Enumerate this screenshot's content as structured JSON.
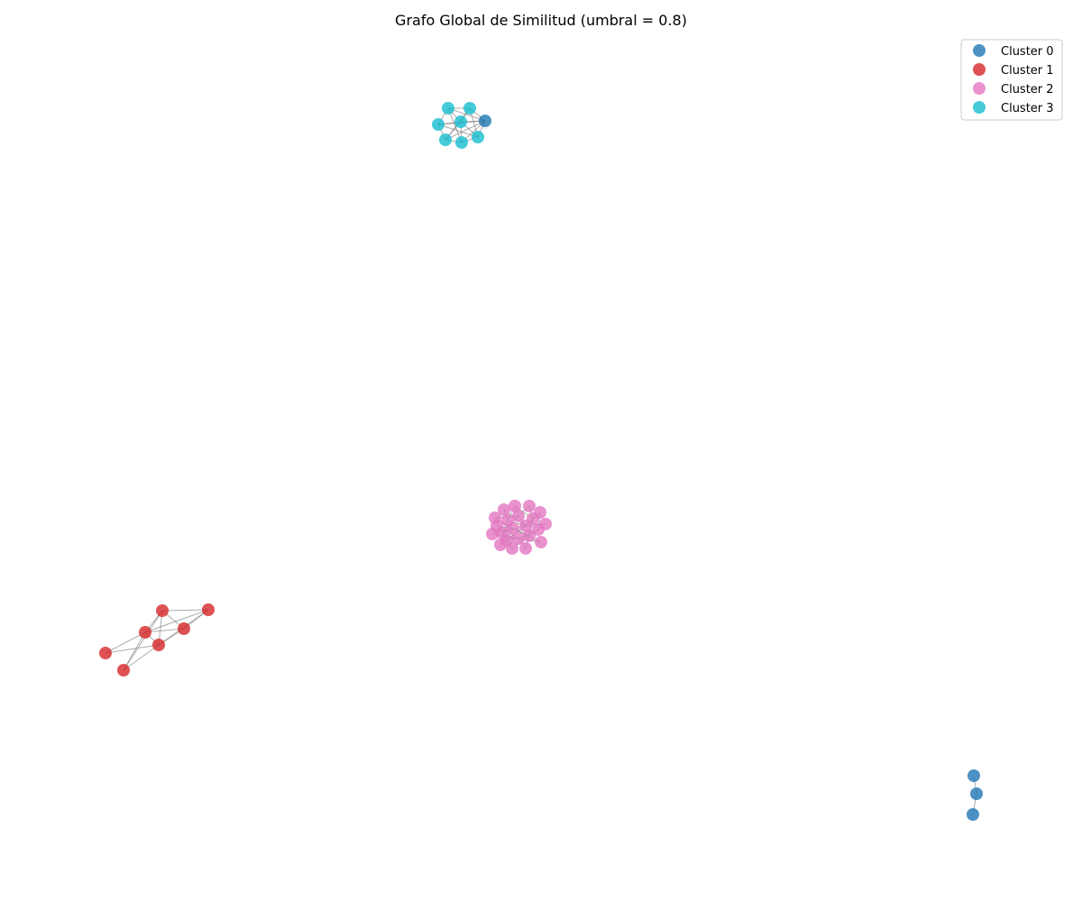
{
  "chart_data": {
    "type": "scatter",
    "title": "Grafo Global de Similitud (umbral = 0.8)",
    "xlabel": "",
    "ylabel": "",
    "axes_visible": false,
    "grid": false,
    "legend_position": "top-right",
    "series": [
      {
        "name": "Cluster 0",
        "color": "#1f77b4",
        "points": [
          [
            1080,
            860
          ],
          [
            1083,
            880
          ],
          [
            1079,
            903
          ],
          [
            538,
            134
          ]
        ]
      },
      {
        "name": "Cluster 1",
        "color": "#d62728",
        "points": [
          [
            180,
            677
          ],
          [
            231,
            676
          ],
          [
            161,
            701
          ],
          [
            204,
            697
          ],
          [
            176,
            715
          ],
          [
            117,
            724
          ],
          [
            137,
            743
          ]
        ]
      },
      {
        "name": "Cluster 2",
        "color": "#e377c2",
        "points": [
          [
            571,
            561
          ],
          [
            587,
            561
          ],
          [
            559,
            565
          ],
          [
            599,
            568
          ],
          [
            575,
            572
          ],
          [
            549,
            574
          ],
          [
            591,
            575
          ],
          [
            563,
            577
          ],
          [
            605,
            581
          ],
          [
            551,
            583
          ],
          [
            583,
            583
          ],
          [
            569,
            586
          ],
          [
            597,
            587
          ],
          [
            557,
            591
          ],
          [
            546,
            592
          ],
          [
            587,
            594
          ],
          [
            575,
            597
          ],
          [
            562,
            599
          ],
          [
            600,
            601
          ],
          [
            555,
            604
          ],
          [
            568,
            608
          ],
          [
            583,
            608
          ]
        ]
      },
      {
        "name": "Cluster 3",
        "color": "#17becf",
        "points": [
          [
            497,
            120
          ],
          [
            521,
            120
          ],
          [
            486,
            138
          ],
          [
            511,
            135
          ],
          [
            494,
            155
          ],
          [
            512,
            158
          ],
          [
            530,
            152
          ]
        ]
      }
    ],
    "edges": [
      [
        [
          497,
          120
        ],
        [
          521,
          120
        ]
      ],
      [
        [
          497,
          120
        ],
        [
          511,
          135
        ]
      ],
      [
        [
          497,
          120
        ],
        [
          486,
          138
        ]
      ],
      [
        [
          497,
          120
        ],
        [
          538,
          134
        ]
      ],
      [
        [
          497,
          120
        ],
        [
          512,
          158
        ]
      ],
      [
        [
          521,
          120
        ],
        [
          511,
          135
        ]
      ],
      [
        [
          521,
          120
        ],
        [
          538,
          134
        ]
      ],
      [
        [
          521,
          120
        ],
        [
          530,
          152
        ]
      ],
      [
        [
          521,
          120
        ],
        [
          494,
          155
        ]
      ],
      [
        [
          486,
          138
        ],
        [
          511,
          135
        ]
      ],
      [
        [
          486,
          138
        ],
        [
          494,
          155
        ]
      ],
      [
        [
          486,
          138
        ],
        [
          538,
          134
        ]
      ],
      [
        [
          486,
          138
        ],
        [
          530,
          152
        ]
      ],
      [
        [
          511,
          135
        ],
        [
          538,
          134
        ]
      ],
      [
        [
          511,
          135
        ],
        [
          494,
          155
        ]
      ],
      [
        [
          511,
          135
        ],
        [
          512,
          158
        ]
      ],
      [
        [
          511,
          135
        ],
        [
          530,
          152
        ]
      ],
      [
        [
          494,
          155
        ],
        [
          512,
          158
        ]
      ],
      [
        [
          494,
          155
        ],
        [
          538,
          134
        ]
      ],
      [
        [
          512,
          158
        ],
        [
          530,
          152
        ]
      ],
      [
        [
          530,
          152
        ],
        [
          538,
          134
        ]
      ],
      [
        [
          512,
          158
        ],
        [
          538,
          134
        ]
      ],
      [
        [
          180,
          677
        ],
        [
          231,
          676
        ]
      ],
      [
        [
          180,
          677
        ],
        [
          161,
          701
        ]
      ],
      [
        [
          180,
          677
        ],
        [
          204,
          697
        ]
      ],
      [
        [
          180,
          677
        ],
        [
          176,
          715
        ]
      ],
      [
        [
          180,
          677
        ],
        [
          137,
          743
        ]
      ],
      [
        [
          231,
          676
        ],
        [
          204,
          697
        ]
      ],
      [
        [
          231,
          676
        ],
        [
          161,
          701
        ]
      ],
      [
        [
          231,
          676
        ],
        [
          176,
          715
        ]
      ],
      [
        [
          161,
          701
        ],
        [
          204,
          697
        ]
      ],
      [
        [
          161,
          701
        ],
        [
          117,
          724
        ]
      ],
      [
        [
          161,
          701
        ],
        [
          137,
          743
        ]
      ],
      [
        [
          161,
          701
        ],
        [
          176,
          715
        ]
      ],
      [
        [
          204,
          697
        ],
        [
          176,
          715
        ]
      ],
      [
        [
          176,
          715
        ],
        [
          117,
          724
        ]
      ],
      [
        [
          176,
          715
        ],
        [
          137,
          743
        ]
      ],
      [
        [
          1080,
          860
        ],
        [
          1083,
          880
        ]
      ],
      [
        [
          1083,
          880
        ],
        [
          1079,
          903
        ]
      ],
      [
        [
          571,
          561
        ],
        [
          575,
          572
        ]
      ],
      [
        [
          587,
          561
        ],
        [
          591,
          575
        ]
      ],
      [
        [
          559,
          565
        ],
        [
          563,
          577
        ]
      ],
      [
        [
          599,
          568
        ],
        [
          597,
          587
        ]
      ],
      [
        [
          575,
          572
        ],
        [
          583,
          583
        ]
      ],
      [
        [
          549,
          574
        ],
        [
          569,
          586
        ]
      ],
      [
        [
          591,
          575
        ],
        [
          587,
          594
        ]
      ],
      [
        [
          563,
          577
        ],
        [
          583,
          583
        ]
      ],
      [
        [
          605,
          581
        ],
        [
          583,
          583
        ]
      ],
      [
        [
          551,
          583
        ],
        [
          575,
          597
        ]
      ],
      [
        [
          583,
          583
        ],
        [
          562,
          599
        ]
      ],
      [
        [
          569,
          586
        ],
        [
          587,
          594
        ]
      ],
      [
        [
          597,
          587
        ],
        [
          575,
          597
        ]
      ],
      [
        [
          557,
          591
        ],
        [
          583,
          583
        ]
      ],
      [
        [
          546,
          592
        ],
        [
          569,
          586
        ]
      ],
      [
        [
          587,
          594
        ],
        [
          568,
          608
        ]
      ],
      [
        [
          575,
          597
        ],
        [
          583,
          608
        ]
      ],
      [
        [
          562,
          599
        ],
        [
          569,
          586
        ]
      ],
      [
        [
          600,
          601
        ],
        [
          575,
          597
        ]
      ],
      [
        [
          555,
          604
        ],
        [
          563,
          577
        ]
      ],
      [
        [
          568,
          608
        ],
        [
          557,
          591
        ]
      ],
      [
        [
          583,
          608
        ],
        [
          591,
          575
        ]
      ],
      [
        [
          571,
          561
        ],
        [
          563,
          577
        ]
      ],
      [
        [
          587,
          561
        ],
        [
          575,
          572
        ]
      ],
      [
        [
          599,
          568
        ],
        [
          583,
          583
        ]
      ],
      [
        [
          549,
          574
        ],
        [
          575,
          572
        ]
      ],
      [
        [
          559,
          565
        ],
        [
          583,
          583
        ]
      ],
      [
        [
          605,
          581
        ],
        [
          587,
          594
        ]
      ],
      [
        [
          551,
          583
        ],
        [
          569,
          586
        ]
      ],
      [
        [
          546,
          592
        ],
        [
          575,
          597
        ]
      ],
      [
        [
          555,
          604
        ],
        [
          583,
          583
        ]
      ],
      [
        [
          600,
          601
        ],
        [
          569,
          586
        ]
      ],
      [
        [
          571,
          561
        ],
        [
          591,
          575
        ]
      ],
      [
        [
          557,
          591
        ],
        [
          575,
          572
        ]
      ],
      [
        [
          562,
          599
        ],
        [
          587,
          594
        ]
      ]
    ]
  }
}
